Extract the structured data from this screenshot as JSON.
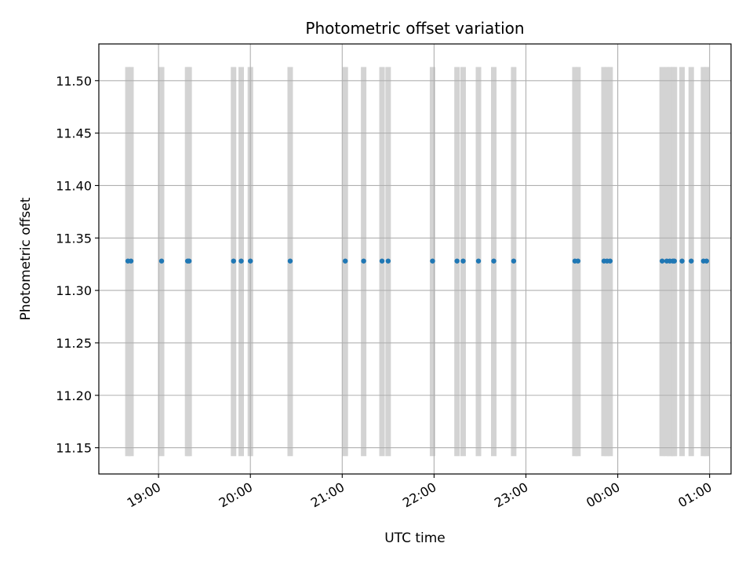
{
  "chart_data": {
    "type": "scatter",
    "title": "Photometric offset variation",
    "xlabel": "UTC time",
    "ylabel": "Photometric offset",
    "x_axis_type": "time",
    "xlim": [
      "18:21",
      "01:14"
    ],
    "ylim": [
      11.125,
      11.535
    ],
    "grid": true,
    "x_ticks": [
      "19:00",
      "20:00",
      "21:00",
      "22:00",
      "23:00",
      "00:00",
      "01:00"
    ],
    "y_ticks": [
      "11.15",
      "11.20",
      "11.25",
      "11.30",
      "11.35",
      "11.40",
      "11.45",
      "11.50"
    ],
    "band_range": [
      11.142,
      11.513
    ],
    "colors": {
      "points": "#1f77b4",
      "bands": "#d3d3d3",
      "grid": "#b0b0b0"
    },
    "bands": [
      "18:40",
      "18:42",
      "19:02",
      "19:19",
      "19:20",
      "19:49",
      "19:54",
      "20:00",
      "20:26",
      "21:02",
      "21:14",
      "21:26",
      "21:30",
      "21:59",
      "22:15",
      "22:19",
      "22:29",
      "22:39",
      "22:52",
      "23:32",
      "23:34",
      "23:51",
      "23:53",
      "23:55",
      "00:29",
      "00:32",
      "00:34",
      "00:36",
      "00:37",
      "00:42",
      "00:48",
      "00:56",
      "00:58"
    ],
    "points": [
      {
        "x": "18:40",
        "y": 11.328
      },
      {
        "x": "18:42",
        "y": 11.328
      },
      {
        "x": "19:02",
        "y": 11.328
      },
      {
        "x": "19:19",
        "y": 11.328
      },
      {
        "x": "19:20",
        "y": 11.328
      },
      {
        "x": "19:49",
        "y": 11.328
      },
      {
        "x": "19:54",
        "y": 11.328
      },
      {
        "x": "20:00",
        "y": 11.328
      },
      {
        "x": "20:26",
        "y": 11.328
      },
      {
        "x": "21:02",
        "y": 11.328
      },
      {
        "x": "21:14",
        "y": 11.328
      },
      {
        "x": "21:26",
        "y": 11.328
      },
      {
        "x": "21:30",
        "y": 11.328
      },
      {
        "x": "21:59",
        "y": 11.328
      },
      {
        "x": "22:15",
        "y": 11.328
      },
      {
        "x": "22:19",
        "y": 11.328
      },
      {
        "x": "22:29",
        "y": 11.328
      },
      {
        "x": "22:39",
        "y": 11.328
      },
      {
        "x": "22:52",
        "y": 11.328
      },
      {
        "x": "23:32",
        "y": 11.328
      },
      {
        "x": "23:34",
        "y": 11.328
      },
      {
        "x": "23:51",
        "y": 11.328
      },
      {
        "x": "23:53",
        "y": 11.328
      },
      {
        "x": "23:55",
        "y": 11.328
      },
      {
        "x": "00:29",
        "y": 11.328
      },
      {
        "x": "00:32",
        "y": 11.328
      },
      {
        "x": "00:34",
        "y": 11.328
      },
      {
        "x": "00:36",
        "y": 11.328
      },
      {
        "x": "00:37",
        "y": 11.328
      },
      {
        "x": "00:42",
        "y": 11.328
      },
      {
        "x": "00:48",
        "y": 11.328
      },
      {
        "x": "00:56",
        "y": 11.328
      },
      {
        "x": "00:58",
        "y": 11.328
      }
    ]
  }
}
